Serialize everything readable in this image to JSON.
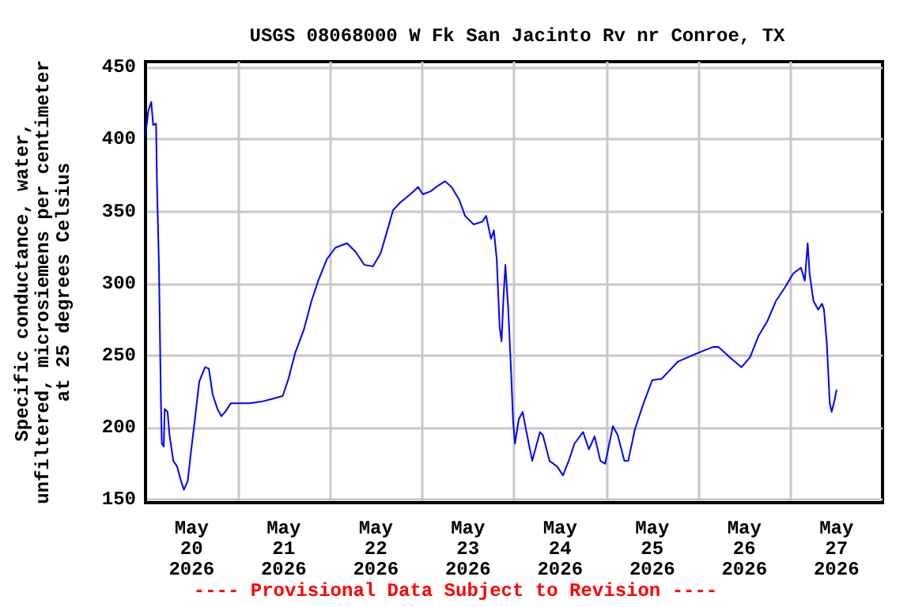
{
  "chart_data": {
    "type": "line",
    "title": "USGS 08068000 W Fk San Jacinto Rv nr Conroe, TX",
    "ylabel": "Specific conductance, water,\nunfiltered, microsiemens per centimeter\nat 25 degrees Celsius",
    "annotations": [
      "---- Provisional Data Subject to Revision ----"
    ],
    "xlim": [
      "2026-05-20",
      "2026-05-28"
    ],
    "xticks": [
      {
        "value": "2026-05-20T12:00",
        "label": "May\n20\n2026"
      },
      {
        "value": "2026-05-21",
        "label": null
      },
      {
        "value": "2026-05-21T12:00",
        "label": "May\n21\n2026"
      },
      {
        "value": "2026-05-22",
        "label": null
      },
      {
        "value": "2026-05-22T12:00",
        "label": "May\n22\n2026"
      },
      {
        "value": "2026-05-23",
        "label": null
      },
      {
        "value": "2026-05-23T12:00",
        "label": "May\n23\n2026"
      },
      {
        "value": "2026-05-24",
        "label": null
      },
      {
        "value": "2026-05-24T12:00",
        "label": "May\n24\n2026"
      },
      {
        "value": "2026-05-25",
        "label": null
      },
      {
        "value": "2026-05-25T12:00",
        "label": "May\n25\n2026"
      },
      {
        "value": "2026-05-26",
        "label": null
      },
      {
        "value": "2026-05-26T12:00",
        "label": "May\n26\n2026"
      },
      {
        "value": "2026-05-27",
        "label": null
      },
      {
        "value": "2026-05-27T12:00",
        "label": "May\n27\n2026"
      }
    ],
    "ylim": [
      148,
      454
    ],
    "yticks": [
      150,
      200,
      250,
      300,
      350,
      400,
      450
    ],
    "grid": true,
    "marker": "none",
    "line_style": "solid",
    "series": [
      {
        "color": "#0000ff",
        "x": [
          "2026-05-20T00:00",
          "2026-05-20T00:45",
          "2026-05-20T01:30",
          "2026-05-20T02:00",
          "2026-05-20T02:45",
          "2026-05-20T03:00",
          "2026-05-20T03:30",
          "2026-05-20T04:00",
          "2026-05-20T04:15",
          "2026-05-20T04:45",
          "2026-05-20T05:00",
          "2026-05-20T05:45",
          "2026-05-20T06:15",
          "2026-05-20T07:15",
          "2026-05-20T08:15",
          "2026-05-20T09:15",
          "2026-05-20T10:00",
          "2026-05-20T11:00",
          "2026-05-20T11:45",
          "2026-05-20T13:00",
          "2026-05-20T14:00",
          "2026-05-20T15:30",
          "2026-05-20T16:30",
          "2026-05-20T17:30",
          "2026-05-20T18:45",
          "2026-05-20T19:45",
          "2026-05-20T20:45",
          "2026-05-20T22:15",
          "2026-05-21T00:00",
          "2026-05-21T03:00",
          "2026-05-21T06:00",
          "2026-05-21T09:00",
          "2026-05-21T11:45",
          "2026-05-21T13:15",
          "2026-05-21T15:00",
          "2026-05-21T17:15",
          "2026-05-21T19:15",
          "2026-05-21T21:00",
          "2026-05-21T23:15",
          "2026-05-22T01:30",
          "2026-05-22T04:30",
          "2026-05-22T06:45",
          "2026-05-22T09:00",
          "2026-05-22T11:15",
          "2026-05-22T13:15",
          "2026-05-22T15:00",
          "2026-05-22T16:30",
          "2026-05-22T18:15",
          "2026-05-22T21:00",
          "2026-05-22T23:00",
          "2026-05-23T00:15",
          "2026-05-23T02:15",
          "2026-05-23T04:15",
          "2026-05-23T06:00",
          "2026-05-23T07:45",
          "2026-05-23T09:45",
          "2026-05-23T11:15",
          "2026-05-23T13:30",
          "2026-05-23T15:45",
          "2026-05-23T16:45",
          "2026-05-23T18:00",
          "2026-05-23T18:45",
          "2026-05-23T19:30",
          "2026-05-23T20:15",
          "2026-05-23T20:45",
          "2026-05-23T21:15",
          "2026-05-23T21:45",
          "2026-05-23T22:30",
          "2026-05-23T23:15",
          "2026-05-23T23:45",
          "2026-05-24T00:15",
          "2026-05-24T01:15",
          "2026-05-24T02:15",
          "2026-05-24T03:15",
          "2026-05-24T04:45",
          "2026-05-24T06:45",
          "2026-05-24T07:30",
          "2026-05-24T09:15",
          "2026-05-24T11:15",
          "2026-05-24T12:45",
          "2026-05-24T14:15",
          "2026-05-24T15:45",
          "2026-05-24T18:00",
          "2026-05-24T19:30",
          "2026-05-24T21:00",
          "2026-05-24T22:30",
          "2026-05-24T23:45",
          "2026-05-25T01:45",
          "2026-05-25T03:00",
          "2026-05-25T04:45",
          "2026-05-25T05:45",
          "2026-05-25T07:30",
          "2026-05-25T09:45",
          "2026-05-25T12:00",
          "2026-05-25T14:30",
          "2026-05-25T18:45",
          "2026-05-26T00:00",
          "2026-05-26T03:45",
          "2026-05-26T05:15",
          "2026-05-26T09:00",
          "2026-05-26T11:15",
          "2026-05-26T13:30",
          "2026-05-26T15:45",
          "2026-05-26T18:00",
          "2026-05-26T20:15",
          "2026-05-26T22:30",
          "2026-05-27T00:45",
          "2026-05-27T02:45",
          "2026-05-27T03:45",
          "2026-05-27T04:30",
          "2026-05-27T05:00",
          "2026-05-27T06:00",
          "2026-05-27T07:15",
          "2026-05-27T08:15",
          "2026-05-27T08:45",
          "2026-05-27T09:30",
          "2026-05-27T10:15",
          "2026-05-27T10:45",
          "2026-05-27T11:30",
          "2026-05-27T12:00"
        ],
        "values": [
          403,
          420,
          426,
          410,
          411,
          368,
          313,
          221,
          189,
          187,
          213,
          211,
          195,
          177,
          173,
          163,
          157,
          163,
          181,
          209,
          232,
          242,
          241,
          223,
          213,
          208,
          211,
          217,
          217,
          217,
          218,
          220,
          222,
          234,
          252,
          268,
          288,
          302,
          317,
          325,
          328,
          322,
          313,
          312,
          321,
          337,
          351,
          356,
          362,
          367,
          362,
          364,
          368,
          371,
          367,
          358,
          347,
          341,
          343,
          347,
          331,
          337,
          317,
          270,
          260,
          290,
          313,
          282,
          238,
          205,
          189,
          206,
          211,
          197,
          177,
          197,
          195,
          177,
          173,
          167,
          177,
          189,
          197,
          185,
          194,
          177,
          175,
          201,
          195,
          177,
          177,
          199,
          217,
          233,
          234,
          246,
          252,
          256,
          256,
          247,
          242,
          249,
          264,
          274,
          288,
          297,
          307,
          311,
          302,
          328,
          307,
          288,
          282,
          286,
          282,
          258,
          217,
          211,
          219,
          226
        ]
      }
    ]
  }
}
